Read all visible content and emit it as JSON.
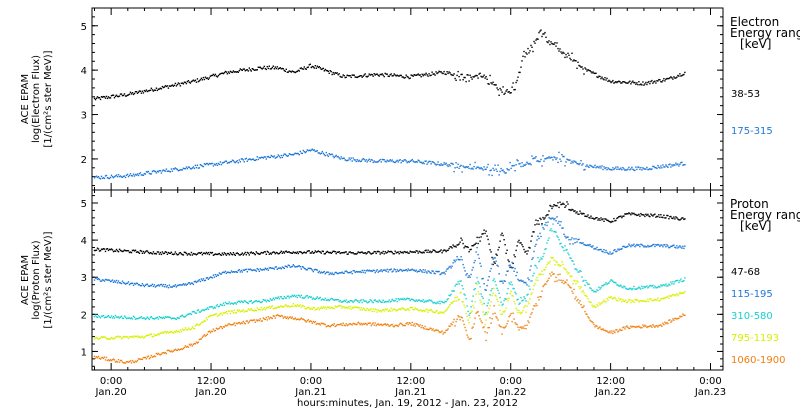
{
  "chart_data": {
    "type": "scatter",
    "xaxis": {
      "title": "hours:minutes, Jan. 19, 2012 - Jan. 23, 2012",
      "ticks": [
        {
          "t": 0,
          "line1": "0:00",
          "line2": "Jan.20"
        },
        {
          "t": 12,
          "line1": "12:00",
          "line2": "Jan.20"
        },
        {
          "t": 24,
          "line1": "0:00",
          "line2": "Jan.21"
        },
        {
          "t": 36,
          "line1": "12:00",
          "line2": "Jan.21"
        },
        {
          "t": 48,
          "line1": "0:00",
          "line2": "Jan.22"
        },
        {
          "t": 60,
          "line1": "12:00",
          "line2": "Jan.22"
        },
        {
          "t": 72,
          "line1": "0:00",
          "line2": "Jan.23"
        }
      ],
      "range_hours_from_jan20_0000": [
        -2.3,
        73.5
      ]
    },
    "panels": [
      {
        "name": "electron",
        "ylabel_lines": [
          "ACE EPAM",
          "log(Electron Flux)",
          "[1/(cm²s ster MeV)]"
        ],
        "ylim": [
          1.3,
          5.4
        ],
        "yticks": [
          2,
          3,
          4,
          5
        ],
        "legend_title_lines": [
          "Electron",
          "Energy range",
          "[keV]"
        ],
        "series": [
          {
            "name": "38-53",
            "color": "#000000",
            "points": [
              [
                -2,
                3.35
              ],
              [
                2,
                3.45
              ],
              [
                6,
                3.6
              ],
              [
                10,
                3.75
              ],
              [
                14,
                3.95
              ],
              [
                18,
                4.05
              ],
              [
                20,
                4.05
              ],
              [
                22,
                3.95
              ],
              [
                24,
                4.1
              ],
              [
                28,
                3.85
              ],
              [
                32,
                3.9
              ],
              [
                36,
                3.85
              ],
              [
                40,
                3.95
              ],
              [
                43,
                3.85
              ],
              [
                45,
                3.85
              ],
              [
                47,
                3.5
              ],
              [
                48.5,
                3.6
              ],
              [
                49.5,
                4.3
              ],
              [
                50.5,
                4.45
              ],
              [
                51.5,
                4.85
              ],
              [
                52.5,
                4.65
              ],
              [
                53.5,
                4.5
              ],
              [
                55,
                4.3
              ],
              [
                57,
                4.0
              ],
              [
                60,
                3.75
              ],
              [
                64,
                3.7
              ],
              [
                67,
                3.8
              ],
              [
                69,
                3.95
              ]
            ]
          },
          {
            "name": "175-315",
            "color": "#1E78D7",
            "points": [
              [
                -2,
                1.58
              ],
              [
                2,
                1.62
              ],
              [
                6,
                1.72
              ],
              [
                10,
                1.82
              ],
              [
                14,
                1.92
              ],
              [
                18,
                2.02
              ],
              [
                22,
                2.1
              ],
              [
                24,
                2.2
              ],
              [
                28,
                2.0
              ],
              [
                32,
                1.95
              ],
              [
                36,
                1.95
              ],
              [
                40,
                1.88
              ],
              [
                44,
                1.8
              ],
              [
                47,
                1.75
              ],
              [
                49,
                1.85
              ],
              [
                51,
                1.95
              ],
              [
                53,
                2.02
              ],
              [
                55,
                1.95
              ],
              [
                57,
                1.85
              ],
              [
                60,
                1.78
              ],
              [
                64,
                1.78
              ],
              [
                67,
                1.85
              ],
              [
                69,
                1.9
              ]
            ]
          }
        ]
      },
      {
        "name": "proton",
        "ylabel_lines": [
          "ACE EPAM",
          "log(Proton Flux)",
          "[1/(cm²s ster MeV)]"
        ],
        "ylim": [
          0.5,
          5.35
        ],
        "yticks": [
          1,
          2,
          3,
          4,
          5
        ],
        "legend_title_lines": [
          "Proton",
          "Energy range",
          "[keV]"
        ],
        "series": [
          {
            "name": "47-68",
            "color": "#000000",
            "points": [
              [
                -2,
                3.75
              ],
              [
                6,
                3.65
              ],
              [
                14,
                3.62
              ],
              [
                22,
                3.68
              ],
              [
                30,
                3.65
              ],
              [
                36,
                3.68
              ],
              [
                40,
                3.7
              ],
              [
                42,
                3.95
              ],
              [
                43,
                3.7
              ],
              [
                44,
                4.0
              ],
              [
                45,
                4.3
              ],
              [
                46,
                3.3
              ],
              [
                47,
                4.2
              ],
              [
                48,
                3.2
              ],
              [
                49,
                4.0
              ],
              [
                50,
                3.6
              ],
              [
                51,
                4.5
              ],
              [
                52,
                4.6
              ],
              [
                53,
                4.9
              ],
              [
                54,
                5.0
              ],
              [
                55,
                4.85
              ],
              [
                56,
                4.75
              ],
              [
                58,
                4.6
              ],
              [
                60,
                4.5
              ],
              [
                62,
                4.7
              ],
              [
                66,
                4.65
              ],
              [
                69,
                4.55
              ]
            ]
          },
          {
            "name": "115-195",
            "color": "#1E78D7",
            "points": [
              [
                -2,
                2.95
              ],
              [
                4,
                2.78
              ],
              [
                8,
                2.75
              ],
              [
                10,
                2.85
              ],
              [
                14,
                3.15
              ],
              [
                18,
                3.2
              ],
              [
                22,
                3.3
              ],
              [
                26,
                3.1
              ],
              [
                30,
                3.15
              ],
              [
                36,
                3.2
              ],
              [
                40,
                3.1
              ],
              [
                42,
                3.55
              ],
              [
                43,
                2.9
              ],
              [
                44,
                3.7
              ],
              [
                45,
                2.6
              ],
              [
                46,
                3.6
              ],
              [
                47,
                2.8
              ],
              [
                48,
                3.4
              ],
              [
                49,
                2.9
              ],
              [
                50,
                2.8
              ],
              [
                51,
                3.9
              ],
              [
                52,
                4.4
              ],
              [
                53,
                4.6
              ],
              [
                54,
                4.4
              ],
              [
                55,
                4.0
              ],
              [
                56,
                4.0
              ],
              [
                58,
                3.8
              ],
              [
                60,
                3.65
              ],
              [
                62,
                3.85
              ],
              [
                66,
                3.85
              ],
              [
                69,
                3.8
              ]
            ]
          },
          {
            "name": "310-580",
            "color": "#18D0D0",
            "points": [
              [
                -2,
                1.95
              ],
              [
                4,
                1.9
              ],
              [
                8,
                1.9
              ],
              [
                10,
                2.05
              ],
              [
                14,
                2.3
              ],
              [
                18,
                2.35
              ],
              [
                22,
                2.5
              ],
              [
                24,
                2.45
              ],
              [
                28,
                2.35
              ],
              [
                32,
                2.35
              ],
              [
                36,
                2.4
              ],
              [
                40,
                2.3
              ],
              [
                42,
                2.95
              ],
              [
                43,
                2.0
              ],
              [
                44,
                3.0
              ],
              [
                45,
                2.0
              ],
              [
                46,
                3.0
              ],
              [
                47,
                2.2
              ],
              [
                48,
                2.9
              ],
              [
                49,
                2.3
              ],
              [
                50,
                2.5
              ],
              [
                51,
                3.3
              ],
              [
                52,
                3.6
              ],
              [
                53,
                4.4
              ],
              [
                54,
                3.9
              ],
              [
                55,
                3.6
              ],
              [
                56,
                3.2
              ],
              [
                58,
                2.6
              ],
              [
                60,
                2.9
              ],
              [
                62,
                2.7
              ],
              [
                66,
                2.75
              ],
              [
                69,
                2.95
              ]
            ]
          },
          {
            "name": "795-1193",
            "color": "#D8F000",
            "points": [
              [
                -2,
                1.35
              ],
              [
                4,
                1.4
              ],
              [
                8,
                1.55
              ],
              [
                10,
                1.65
              ],
              [
                12,
                1.95
              ],
              [
                14,
                2.05
              ],
              [
                18,
                2.15
              ],
              [
                22,
                2.25
              ],
              [
                24,
                2.15
              ],
              [
                28,
                2.2
              ],
              [
                32,
                2.1
              ],
              [
                36,
                2.15
              ],
              [
                40,
                2.05
              ],
              [
                42,
                2.6
              ],
              [
                43,
                1.75
              ],
              [
                44,
                2.7
              ],
              [
                45,
                1.8
              ],
              [
                46,
                2.7
              ],
              [
                47,
                1.9
              ],
              [
                48,
                2.6
              ],
              [
                49,
                2.0
              ],
              [
                50,
                2.2
              ],
              [
                51,
                2.9
              ],
              [
                52,
                3.2
              ],
              [
                53,
                3.5
              ],
              [
                54,
                3.3
              ],
              [
                55,
                3.1
              ],
              [
                56,
                2.8
              ],
              [
                58,
                2.2
              ],
              [
                60,
                2.45
              ],
              [
                62,
                2.35
              ],
              [
                66,
                2.4
              ],
              [
                69,
                2.6
              ]
            ]
          },
          {
            "name": "1060-1900",
            "color": "#F08010",
            "points": [
              [
                -2,
                0.85
              ],
              [
                2,
                0.7
              ],
              [
                4,
                0.8
              ],
              [
                6,
                0.95
              ],
              [
                8,
                1.05
              ],
              [
                10,
                1.2
              ],
              [
                12,
                1.55
              ],
              [
                14,
                1.7
              ],
              [
                18,
                1.85
              ],
              [
                20,
                1.95
              ],
              [
                22,
                1.9
              ],
              [
                24,
                1.8
              ],
              [
                26,
                1.7
              ],
              [
                30,
                1.75
              ],
              [
                34,
                1.7
              ],
              [
                36,
                1.75
              ],
              [
                40,
                1.5
              ],
              [
                42,
                2.0
              ],
              [
                43,
                1.3
              ],
              [
                44,
                2.1
              ],
              [
                45,
                1.4
              ],
              [
                46,
                2.1
              ],
              [
                47,
                1.5
              ],
              [
                48,
                2.0
              ],
              [
                49,
                1.6
              ],
              [
                50,
                1.7
              ],
              [
                51,
                2.3
              ],
              [
                52,
                2.8
              ],
              [
                53,
                3.1
              ],
              [
                54,
                2.9
              ],
              [
                55,
                2.8
              ],
              [
                56,
                2.4
              ],
              [
                58,
                1.7
              ],
              [
                60,
                1.5
              ],
              [
                62,
                1.65
              ],
              [
                66,
                1.7
              ],
              [
                69,
                2.0
              ]
            ]
          }
        ]
      }
    ]
  }
}
